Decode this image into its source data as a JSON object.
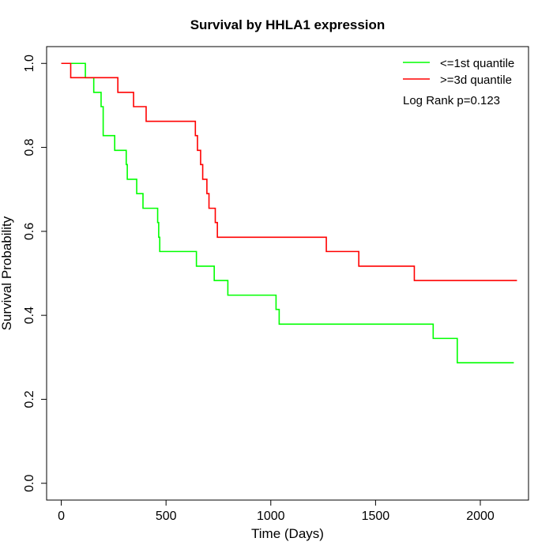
{
  "chart_data": {
    "type": "line",
    "title": "Survival by HHLA1 expression",
    "xlabel": "Time (Days)",
    "ylabel": "Survival Probability",
    "xlim": [
      -70,
      2230
    ],
    "ylim": [
      -0.04,
      1.04
    ],
    "xticks": [
      0,
      500,
      1000,
      1500,
      2000
    ],
    "yticks": [
      0.0,
      0.2,
      0.4,
      0.6,
      0.8,
      1.0
    ],
    "xtick_labels": [
      "0",
      "500",
      "1000",
      "1500",
      "2000"
    ],
    "ytick_labels": [
      "0.0",
      "0.2",
      "0.4",
      "0.6",
      "0.8",
      "1.0"
    ],
    "legend_position": "top-right",
    "grid": false,
    "annotation": "Log Rank p=0.123",
    "series": [
      {
        "name": "<=1st quantile",
        "color": "#00ff00",
        "step": true,
        "x": [
          0,
          115,
          155,
          190,
          200,
          255,
          310,
          315,
          360,
          390,
          460,
          465,
          470,
          645,
          730,
          795,
          1025,
          1040,
          1775,
          1890,
          2160
        ],
        "y": [
          1.0,
          0.966,
          0.931,
          0.897,
          0.828,
          0.793,
          0.759,
          0.724,
          0.69,
          0.655,
          0.621,
          0.586,
          0.552,
          0.517,
          0.483,
          0.448,
          0.414,
          0.379,
          0.345,
          0.287,
          0.287
        ]
      },
      {
        "name": ">=3d quantile",
        "color": "#ff0000",
        "step": true,
        "x": [
          0,
          45,
          270,
          345,
          405,
          640,
          650,
          665,
          675,
          695,
          705,
          735,
          745,
          1265,
          1420,
          1685,
          2175
        ],
        "y": [
          1.0,
          0.966,
          0.931,
          0.897,
          0.862,
          0.828,
          0.793,
          0.759,
          0.724,
          0.69,
          0.655,
          0.621,
          0.586,
          0.552,
          0.517,
          0.483,
          0.483
        ]
      }
    ]
  }
}
